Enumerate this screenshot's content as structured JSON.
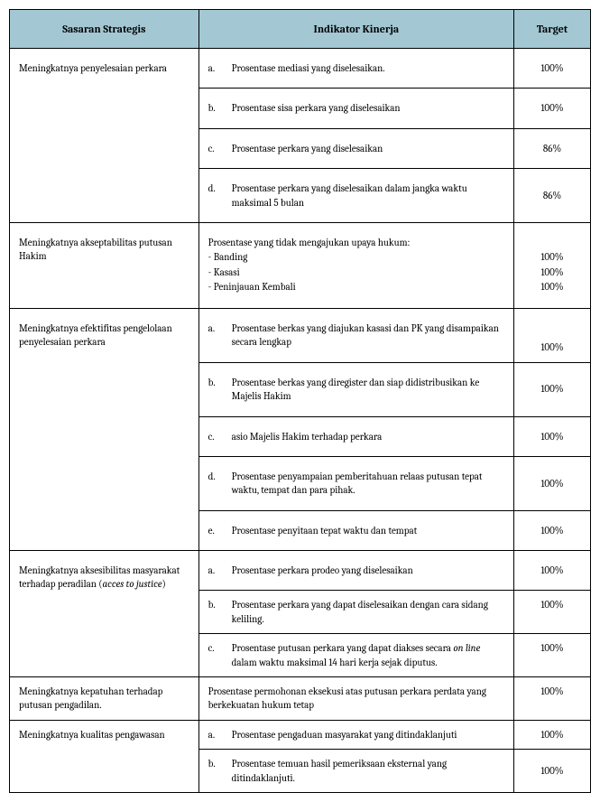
{
  "headers": {
    "sasaran": "Sasaran Strategis",
    "indikator": "Indikator Kinerja",
    "target": "Target"
  },
  "rows": [
    {
      "sasaran": "Meningkatnya penyelesaian perkara",
      "items": [
        {
          "label": "a.",
          "text": "Prosentase mediasi yang diselesaikan.",
          "target": "100%"
        },
        {
          "label": "b.",
          "text": "Prosentase sisa perkara yang diselesaikan",
          "target": "100%"
        },
        {
          "label": "c.",
          "text": "Prosentase perkara yang diselesaikan",
          "target": "86%"
        },
        {
          "label": "d.",
          "text": "Prosentase perkara yang diselesaikan dalam jangka waktu maksimal 5 bulan",
          "target": "86%"
        }
      ]
    },
    {
      "sasaran": "Meningkatnya akseptabilitas putusan Hakim",
      "multiIndikator": {
        "lead": "Prosentase yang tidak mengajukan upaya hukum:",
        "lines": [
          "- Banding",
          "- Kasasi",
          "- Peninjauan Kembali"
        ]
      },
      "multiTarget": [
        "100%",
        "100%",
        "100%"
      ]
    },
    {
      "sasaran": "Meningkatnya efektifitas pengelolaan penyelesaian perkara",
      "items": [
        {
          "label": "a.",
          "text": "Prosentase berkas yang diajukan kasasi dan PK yang disampaikan secara lengkap",
          "target": "100%"
        },
        {
          "label": "b.",
          "text": "Prosentase berkas yang diregister dan siap didistribusikan ke Majelis Hakim",
          "target": "100%"
        },
        {
          "label": "c.",
          "text": "asio Majelis Hakim terhadap perkara",
          "target": "100%"
        },
        {
          "label": "d.",
          "text": "Prosentase penyampaian pemberitahuan relaas putusan tepat waktu, tempat dan para pihak.",
          "target": "100%"
        },
        {
          "label": "e.",
          "text": "Prosentase penyitaan tepat waktu dan tempat",
          "target": "100%"
        }
      ]
    },
    {
      "sasaran": "Meningkatnya aksesibilitas masyarakat terhadap peradilan (",
      "sasaranItalic": "acces to justice",
      "sasaranAfter": ")",
      "items": [
        {
          "label": "a.",
          "text": "Prosentase perkara prodeo yang diselesaikan",
          "target": "100%"
        },
        {
          "label": "b.",
          "text": "Prosentase perkara yang dapat diselesaikan dengan cara sidang keliling.",
          "target": "100%"
        },
        {
          "label": "c.",
          "textPre": "Prosentase  putusan perkara  yang dapat diakses secara ",
          "textItalic": "on line",
          "textPost": " dalam waktu maksimal 14  hari kerja sejak diputus.",
          "target": "100%",
          "targetTop": true
        }
      ]
    },
    {
      "sasaran": "Meningkatnya kepatuhan terhadap putusan pengadilan.",
      "singleItem": {
        "text": "Prosentase permohonan eksekusi atas putusan perkara perdata yang berkekuatan hukum tetap",
        "target": "100%",
        "targetTop": true
      }
    },
    {
      "sasaran": "Meningkatnya kualitas pengawasan",
      "items": [
        {
          "label": "a.",
          "text": "Prosentase pengaduan masyarakat yang ditindaklanjuti",
          "target": "100%"
        },
        {
          "label": "b.",
          "text": "Prosentase temuan hasil pemeriksaan eksternal yang ditindaklanjuti.",
          "target": "100%"
        }
      ]
    }
  ]
}
